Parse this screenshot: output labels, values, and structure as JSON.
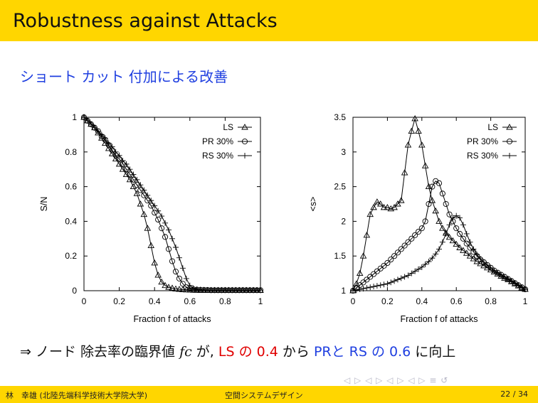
{
  "slide": {
    "title": "Robustness against Attacks",
    "subtitle": "ショート カット 付加による改善",
    "conclusion": {
      "arrow": "⇒",
      "text1": "ノード 除去率の臨界値",
      "fc": "fc",
      "text2": "が,",
      "ls_part": "LS の 0.4",
      "text3": "から",
      "pr_rs_part": "PRと RS の 0.6",
      "text4": "に向上"
    },
    "nav_symbols": "◁ ▷ ◁ ▷ ◁ ▷ ◁ ▷ ≡ ↺"
  },
  "footer": {
    "author": "林　幸雄 (北陸先端科学技術大学院大学)",
    "course": "空間システムデザイン",
    "page": "22 / 34"
  },
  "colors": {
    "bar": "#ffd600",
    "accent_blue": "#1f3fe0",
    "accent_red": "#e00000"
  },
  "chart_data": [
    {
      "type": "line",
      "xlabel": "Fraction f of attacks",
      "ylabel": "S/N",
      "xlim": [
        0,
        1
      ],
      "ylim": [
        0,
        1
      ],
      "xticks": [
        "0",
        "0.2",
        "0.4",
        "0.6",
        "0.8",
        "1"
      ],
      "yticks": [
        "0",
        "0.2",
        "0.4",
        "0.6",
        "0.8",
        "1"
      ],
      "legend_position": "top-right",
      "series": [
        {
          "name": "LS",
          "marker": "triangle",
          "x": [
            0,
            0.02,
            0.04,
            0.06,
            0.08,
            0.1,
            0.12,
            0.14,
            0.16,
            0.18,
            0.2,
            0.22,
            0.24,
            0.26,
            0.28,
            0.3,
            0.32,
            0.34,
            0.36,
            0.38,
            0.4,
            0.42,
            0.44,
            0.46,
            0.48,
            0.5,
            0.52,
            0.54,
            0.56,
            0.58,
            0.6,
            0.62,
            0.64,
            0.66,
            0.68,
            0.7,
            0.72,
            0.74,
            0.76,
            0.78,
            0.8,
            0.82,
            0.84,
            0.86,
            0.88,
            0.9,
            0.92,
            0.94,
            0.96,
            0.98,
            1.0
          ],
          "y": [
            1.0,
            0.98,
            0.96,
            0.94,
            0.91,
            0.88,
            0.85,
            0.82,
            0.79,
            0.76,
            0.73,
            0.7,
            0.67,
            0.64,
            0.6,
            0.56,
            0.5,
            0.44,
            0.36,
            0.26,
            0.16,
            0.09,
            0.05,
            0.03,
            0.02,
            0.015,
            0.01,
            0.008,
            0.006,
            0.005,
            0.004,
            0.003,
            0.003,
            0.002,
            0.002,
            0.002,
            0.002,
            0.002,
            0.002,
            0.002,
            0.002,
            0.002,
            0.002,
            0.002,
            0.002,
            0.002,
            0.002,
            0.002,
            0.002,
            0.002,
            0.002
          ]
        },
        {
          "name": "PR 30%",
          "marker": "circle",
          "x": [
            0,
            0.02,
            0.04,
            0.06,
            0.08,
            0.1,
            0.12,
            0.14,
            0.16,
            0.18,
            0.2,
            0.22,
            0.24,
            0.26,
            0.28,
            0.3,
            0.32,
            0.34,
            0.36,
            0.38,
            0.4,
            0.42,
            0.44,
            0.46,
            0.48,
            0.5,
            0.52,
            0.54,
            0.56,
            0.58,
            0.6,
            0.62,
            0.64,
            0.66,
            0.68,
            0.7,
            0.72,
            0.74,
            0.76,
            0.78,
            0.8,
            0.82,
            0.84,
            0.86,
            0.88,
            0.9,
            0.92,
            0.94,
            0.96,
            0.98,
            1.0
          ],
          "y": [
            1.0,
            0.98,
            0.96,
            0.94,
            0.92,
            0.89,
            0.87,
            0.84,
            0.81,
            0.78,
            0.76,
            0.73,
            0.7,
            0.67,
            0.64,
            0.61,
            0.58,
            0.55,
            0.52,
            0.49,
            0.45,
            0.41,
            0.36,
            0.31,
            0.24,
            0.17,
            0.11,
            0.07,
            0.04,
            0.02,
            0.012,
            0.008,
            0.006,
            0.005,
            0.004,
            0.004,
            0.003,
            0.003,
            0.003,
            0.003,
            0.003,
            0.003,
            0.003,
            0.003,
            0.003,
            0.003,
            0.003,
            0.003,
            0.003,
            0.003,
            0.003
          ]
        },
        {
          "name": "RS 30%",
          "marker": "plus",
          "x": [
            0,
            0.02,
            0.04,
            0.06,
            0.08,
            0.1,
            0.12,
            0.14,
            0.16,
            0.18,
            0.2,
            0.22,
            0.24,
            0.26,
            0.28,
            0.3,
            0.32,
            0.34,
            0.36,
            0.38,
            0.4,
            0.42,
            0.44,
            0.46,
            0.48,
            0.5,
            0.52,
            0.54,
            0.56,
            0.58,
            0.6,
            0.62,
            0.64,
            0.66,
            0.68,
            0.7,
            0.72,
            0.74,
            0.76,
            0.78,
            0.8,
            0.82,
            0.84,
            0.86,
            0.88,
            0.9,
            0.92,
            0.94,
            0.96,
            0.98,
            1.0
          ],
          "y": [
            1.0,
            0.98,
            0.96,
            0.94,
            0.92,
            0.9,
            0.88,
            0.85,
            0.83,
            0.8,
            0.78,
            0.75,
            0.73,
            0.7,
            0.67,
            0.64,
            0.61,
            0.58,
            0.55,
            0.52,
            0.49,
            0.46,
            0.43,
            0.39,
            0.35,
            0.3,
            0.25,
            0.19,
            0.13,
            0.07,
            0.03,
            0.015,
            0.008,
            0.006,
            0.005,
            0.004,
            0.004,
            0.004,
            0.004,
            0.004,
            0.004,
            0.004,
            0.004,
            0.004,
            0.004,
            0.004,
            0.004,
            0.004,
            0.004,
            0.004,
            0.004
          ]
        }
      ]
    },
    {
      "type": "line",
      "xlabel": "Fraction f of attacks",
      "ylabel": "<s>",
      "xlim": [
        0,
        1
      ],
      "ylim": [
        1,
        3.5
      ],
      "xticks": [
        "0",
        "0.2",
        "0.4",
        "0.6",
        "0.8",
        "1"
      ],
      "yticks": [
        "1",
        "1.5",
        "2",
        "2.5",
        "3",
        "3.5"
      ],
      "legend_position": "top-right",
      "series": [
        {
          "name": "LS",
          "marker": "triangle",
          "x": [
            0,
            0.02,
            0.04,
            0.06,
            0.08,
            0.1,
            0.12,
            0.14,
            0.16,
            0.18,
            0.2,
            0.22,
            0.24,
            0.26,
            0.28,
            0.3,
            0.32,
            0.34,
            0.36,
            0.38,
            0.4,
            0.42,
            0.44,
            0.46,
            0.48,
            0.5,
            0.52,
            0.54,
            0.56,
            0.58,
            0.6,
            0.62,
            0.64,
            0.66,
            0.68,
            0.7,
            0.72,
            0.74,
            0.76,
            0.78,
            0.8,
            0.82,
            0.84,
            0.86,
            0.88,
            0.9,
            0.92,
            0.94,
            0.96,
            0.98,
            1.0
          ],
          "y": [
            1.0,
            1.1,
            1.25,
            1.5,
            1.8,
            2.1,
            2.2,
            2.28,
            2.25,
            2.2,
            2.2,
            2.18,
            2.2,
            2.25,
            2.3,
            2.7,
            3.1,
            3.3,
            3.48,
            3.3,
            3.1,
            2.8,
            2.5,
            2.3,
            2.15,
            2.0,
            1.9,
            1.83,
            1.77,
            1.72,
            1.67,
            1.62,
            1.58,
            1.54,
            1.5,
            1.46,
            1.42,
            1.39,
            1.36,
            1.33,
            1.3,
            1.27,
            1.24,
            1.21,
            1.18,
            1.16,
            1.13,
            1.1,
            1.07,
            1.04,
            1.02
          ]
        },
        {
          "name": "PR 30%",
          "marker": "circle",
          "x": [
            0,
            0.02,
            0.04,
            0.06,
            0.08,
            0.1,
            0.12,
            0.14,
            0.16,
            0.18,
            0.2,
            0.22,
            0.24,
            0.26,
            0.28,
            0.3,
            0.32,
            0.34,
            0.36,
            0.38,
            0.4,
            0.42,
            0.44,
            0.46,
            0.48,
            0.5,
            0.52,
            0.54,
            0.56,
            0.58,
            0.6,
            0.62,
            0.64,
            0.66,
            0.68,
            0.7,
            0.72,
            0.74,
            0.76,
            0.78,
            0.8,
            0.82,
            0.84,
            0.86,
            0.88,
            0.9,
            0.92,
            0.94,
            0.96,
            0.98,
            1.0
          ],
          "y": [
            1.0,
            1.04,
            1.08,
            1.12,
            1.16,
            1.2,
            1.24,
            1.28,
            1.32,
            1.36,
            1.4,
            1.45,
            1.5,
            1.55,
            1.6,
            1.65,
            1.7,
            1.75,
            1.8,
            1.85,
            1.9,
            2.0,
            2.25,
            2.5,
            2.58,
            2.55,
            2.4,
            2.25,
            2.1,
            2.0,
            1.9,
            1.82,
            1.75,
            1.68,
            1.62,
            1.56,
            1.5,
            1.45,
            1.41,
            1.37,
            1.33,
            1.29,
            1.26,
            1.23,
            1.2,
            1.17,
            1.14,
            1.11,
            1.08,
            1.05,
            1.02
          ]
        },
        {
          "name": "RS 30%",
          "marker": "plus",
          "x": [
            0,
            0.02,
            0.04,
            0.06,
            0.08,
            0.1,
            0.12,
            0.14,
            0.16,
            0.18,
            0.2,
            0.22,
            0.24,
            0.26,
            0.28,
            0.3,
            0.32,
            0.34,
            0.36,
            0.38,
            0.4,
            0.42,
            0.44,
            0.46,
            0.48,
            0.5,
            0.52,
            0.54,
            0.56,
            0.58,
            0.6,
            0.62,
            0.64,
            0.66,
            0.68,
            0.7,
            0.72,
            0.74,
            0.76,
            0.78,
            0.8,
            0.82,
            0.84,
            0.86,
            0.88,
            0.9,
            0.92,
            0.94,
            0.96,
            0.98,
            1.0
          ],
          "y": [
            1.0,
            1.01,
            1.02,
            1.03,
            1.04,
            1.05,
            1.06,
            1.07,
            1.08,
            1.09,
            1.1,
            1.12,
            1.14,
            1.16,
            1.18,
            1.2,
            1.22,
            1.25,
            1.28,
            1.31,
            1.34,
            1.38,
            1.42,
            1.47,
            1.53,
            1.6,
            1.7,
            1.82,
            1.95,
            2.05,
            2.08,
            2.05,
            1.95,
            1.82,
            1.7,
            1.6,
            1.52,
            1.46,
            1.41,
            1.37,
            1.33,
            1.29,
            1.26,
            1.23,
            1.2,
            1.17,
            1.14,
            1.11,
            1.08,
            1.05,
            1.02
          ]
        }
      ]
    }
  ]
}
